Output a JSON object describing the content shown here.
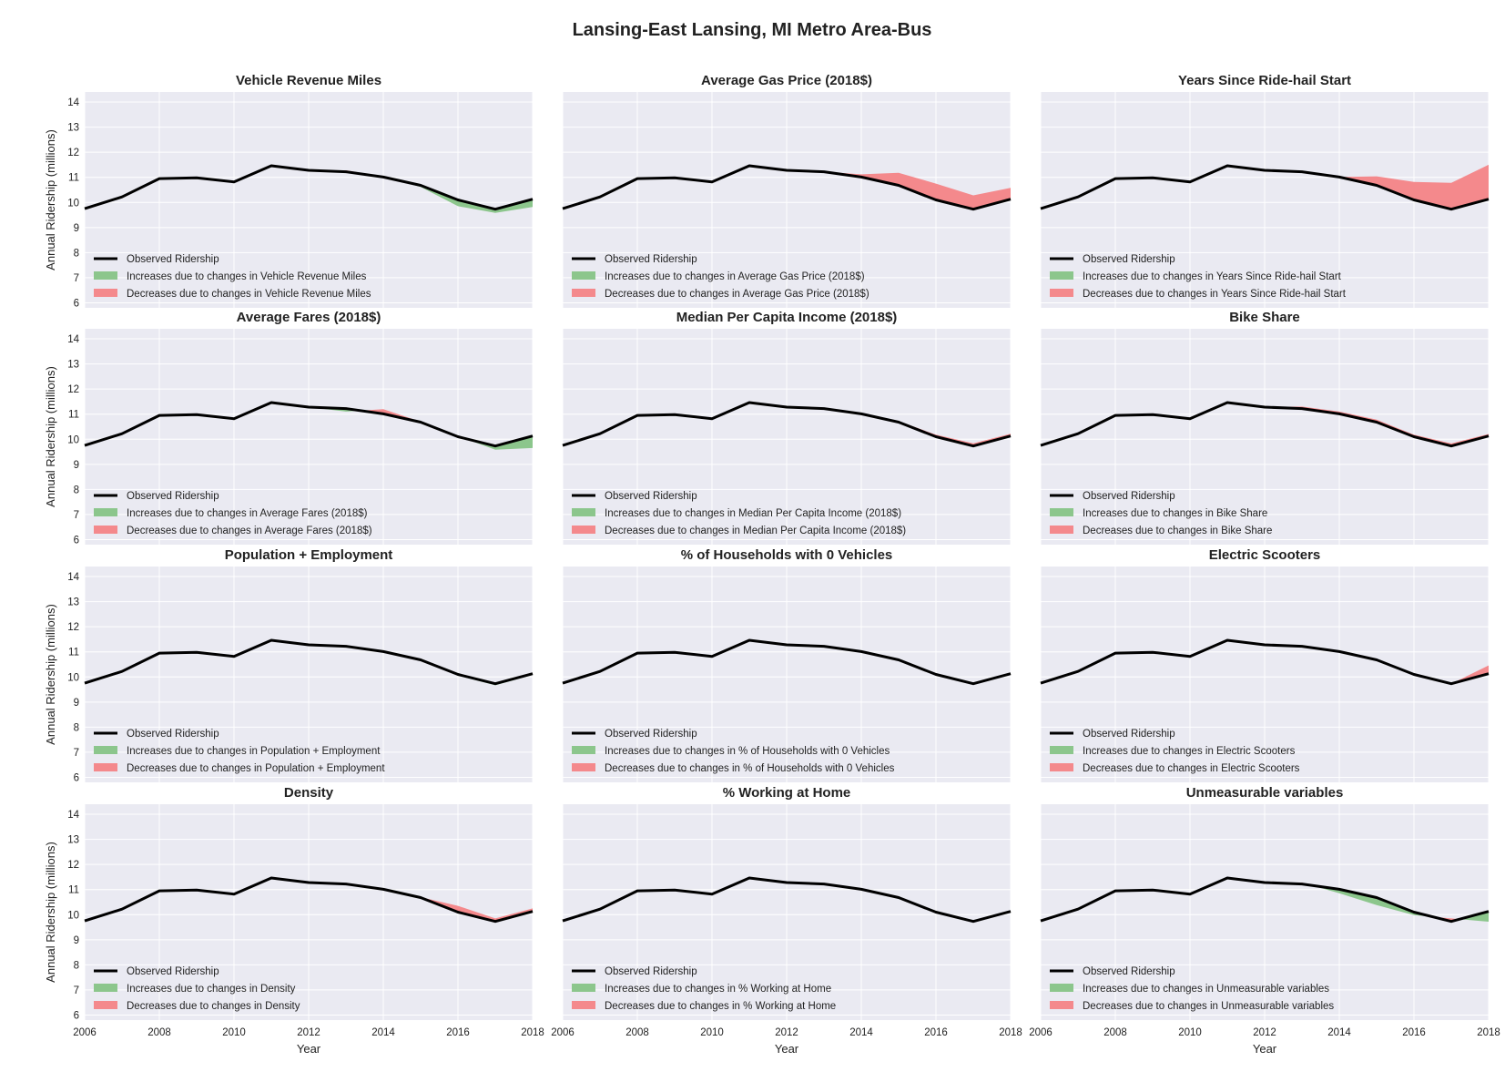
{
  "figure": {
    "title": "Lansing-East Lansing, MI Metro Area-Bus",
    "xlabel": "Year",
    "ylabel": "Annual Ridership (millions)",
    "colors": {
      "background": "#eaeaf2",
      "grid": "#ffffff",
      "observed": "#000000",
      "increase": "#8cc68c",
      "decrease": "#f4898c"
    }
  },
  "chart_data": {
    "type": "line",
    "x": [
      2006,
      2007,
      2008,
      2009,
      2010,
      2011,
      2012,
      2013,
      2014,
      2015,
      2016,
      2017,
      2018
    ],
    "observed": [
      9.75,
      10.22,
      10.95,
      10.98,
      10.82,
      11.46,
      11.28,
      11.22,
      11.01,
      10.68,
      10.1,
      9.73,
      10.13
    ],
    "xlim": [
      2006,
      2018
    ],
    "ylim": [
      5.8,
      14.4
    ],
    "xticks": [
      2006,
      2008,
      2010,
      2012,
      2014,
      2016,
      2018
    ],
    "yticks": [
      6,
      7,
      8,
      9,
      10,
      11,
      12,
      13,
      14
    ],
    "legend_observed": "Observed Ridership",
    "legend_increase_prefix": "Increases due to changes in ",
    "legend_decrease_prefix": "Decreases due to changes in ",
    "panels": [
      {
        "title": "Vehicle Revenue Miles",
        "counterfactual": [
          9.75,
          10.22,
          10.95,
          10.98,
          10.82,
          11.46,
          11.28,
          11.28,
          11.02,
          10.62,
          9.85,
          9.58,
          9.82
        ]
      },
      {
        "title": "Average Gas Price (2018$)",
        "counterfactual": [
          9.75,
          10.22,
          10.95,
          10.98,
          10.82,
          11.46,
          11.28,
          11.22,
          11.12,
          11.18,
          10.75,
          10.28,
          10.58
        ]
      },
      {
        "title": "Years Since Ride-hail Start",
        "counterfactual": [
          9.75,
          10.22,
          10.95,
          10.98,
          10.82,
          11.46,
          11.28,
          11.22,
          11.01,
          11.04,
          10.82,
          10.78,
          11.5
        ]
      },
      {
        "title": "Average Fares (2018$)",
        "counterfactual": [
          9.75,
          10.22,
          10.95,
          10.98,
          10.82,
          11.46,
          11.28,
          11.1,
          11.2,
          10.7,
          10.12,
          9.58,
          9.65
        ]
      },
      {
        "title": "Median Per Capita Income (2018$)",
        "counterfactual": [
          9.75,
          10.22,
          10.95,
          10.98,
          10.82,
          11.46,
          11.28,
          11.22,
          11.01,
          10.72,
          10.18,
          9.84,
          10.22
        ]
      },
      {
        "title": "Bike Share",
        "counterfactual": [
          9.75,
          10.22,
          10.95,
          10.98,
          10.82,
          11.46,
          11.28,
          11.3,
          11.1,
          10.78,
          10.18,
          9.83,
          10.21
        ]
      },
      {
        "title": "Population + Employment",
        "counterfactual": [
          9.75,
          10.22,
          10.95,
          10.98,
          10.82,
          11.46,
          11.28,
          11.22,
          11.01,
          10.68,
          10.05,
          9.67,
          10.08
        ]
      },
      {
        "title": "% of Households with 0 Vehicles",
        "counterfactual": [
          9.75,
          10.22,
          10.95,
          10.98,
          10.82,
          11.46,
          11.28,
          11.22,
          11.01,
          10.68,
          10.1,
          9.73,
          10.13
        ]
      },
      {
        "title": "Electric Scooters",
        "counterfactual": [
          9.75,
          10.22,
          10.95,
          10.98,
          10.82,
          11.46,
          11.28,
          11.22,
          11.01,
          10.68,
          10.1,
          9.73,
          10.46
        ]
      },
      {
        "title": "Density",
        "counterfactual": [
          9.75,
          10.22,
          10.95,
          10.98,
          10.82,
          11.46,
          11.28,
          11.22,
          11.01,
          10.7,
          10.35,
          9.85,
          10.25
        ]
      },
      {
        "title": "% Working at Home",
        "counterfactual": [
          9.75,
          10.22,
          10.95,
          10.98,
          10.82,
          11.46,
          11.28,
          11.22,
          11.01,
          10.68,
          10.1,
          9.73,
          10.13
        ]
      },
      {
        "title": "Unmeasurable variables",
        "counterfactual": [
          9.75,
          10.22,
          10.95,
          10.98,
          10.82,
          11.46,
          11.28,
          11.28,
          10.85,
          10.38,
          9.98,
          9.85,
          9.72
        ]
      }
    ]
  }
}
